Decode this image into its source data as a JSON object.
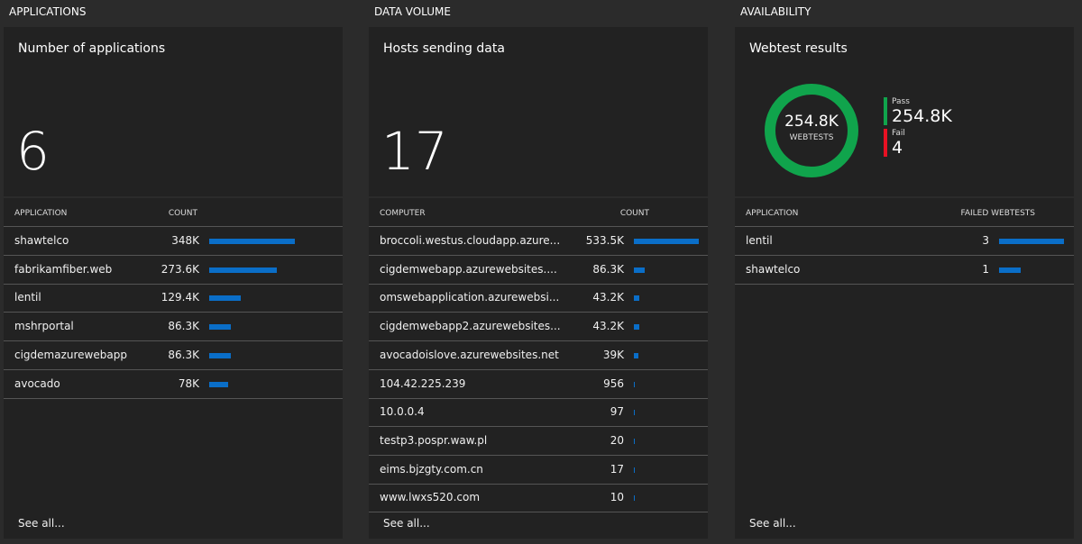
{
  "sections": [
    {
      "heading": "APPLICATIONS",
      "tile": {
        "title": "Number of applications",
        "value": 6
      },
      "table": {
        "columns": [
          "APPLICATION",
          "COUNT"
        ],
        "rows": [
          {
            "name": "shawtelco",
            "count": 348000,
            "count_label": "348K"
          },
          {
            "name": "fabrikamfiber.web",
            "count": 273600,
            "count_label": "273.6K"
          },
          {
            "name": "lentil",
            "count": 129400,
            "count_label": "129.4K"
          },
          {
            "name": "mshrportal",
            "count": 86300,
            "count_label": "86.3K"
          },
          {
            "name": "cigdemazurewebapp",
            "count": 86300,
            "count_label": "86.3K"
          },
          {
            "name": "avocado",
            "count": 78000,
            "count_label": "78K"
          }
        ]
      },
      "footer": "See all..."
    },
    {
      "heading": "DATA VOLUME",
      "tile": {
        "title": "Hosts sending data",
        "value": 17
      },
      "table": {
        "columns": [
          "COMPUTER",
          "COUNT"
        ],
        "rows": [
          {
            "name": "broccoli.westus.cloudapp.azure...",
            "count": 533500,
            "count_label": "533.5K"
          },
          {
            "name": "cigdemwebapp.azurewebsites....",
            "count": 86300,
            "count_label": "86.3K"
          },
          {
            "name": "omswebapplication.azurewebsi...",
            "count": 43200,
            "count_label": "43.2K"
          },
          {
            "name": "cigdemwebapp2.azurewebsites...",
            "count": 43200,
            "count_label": "43.2K"
          },
          {
            "name": "avocadoislove.azurewebsites.net",
            "count": 39000,
            "count_label": "39K"
          },
          {
            "name": "104.42.225.239",
            "count": 956
          },
          {
            "name": "10.0.0.4",
            "count": 97
          },
          {
            "name": "testp3.pospr.waw.pl",
            "count": 20
          },
          {
            "name": "eims.bjzgty.com.cn",
            "count": 17
          },
          {
            "name": "www.lwxs520.com",
            "count": 10
          }
        ]
      },
      "footer": "See all..."
    },
    {
      "heading": "AVAILABILITY",
      "tile": {
        "title": "Webtest results",
        "total_label": "254.8K",
        "total_caption": "WEBTESTS",
        "segments": [
          {
            "name": "Pass",
            "value": 254800,
            "label": "254.8K",
            "color": "#10a44c"
          },
          {
            "name": "Fail",
            "value": 4,
            "color": "#e81123"
          }
        ]
      },
      "table": {
        "columns": [
          "APPLICATION",
          "FAILED WEBTESTS"
        ],
        "rows": [
          {
            "name": "lentil",
            "count": 3
          },
          {
            "name": "shawtelco",
            "count": 1
          }
        ]
      },
      "footer": "See all..."
    }
  ]
}
